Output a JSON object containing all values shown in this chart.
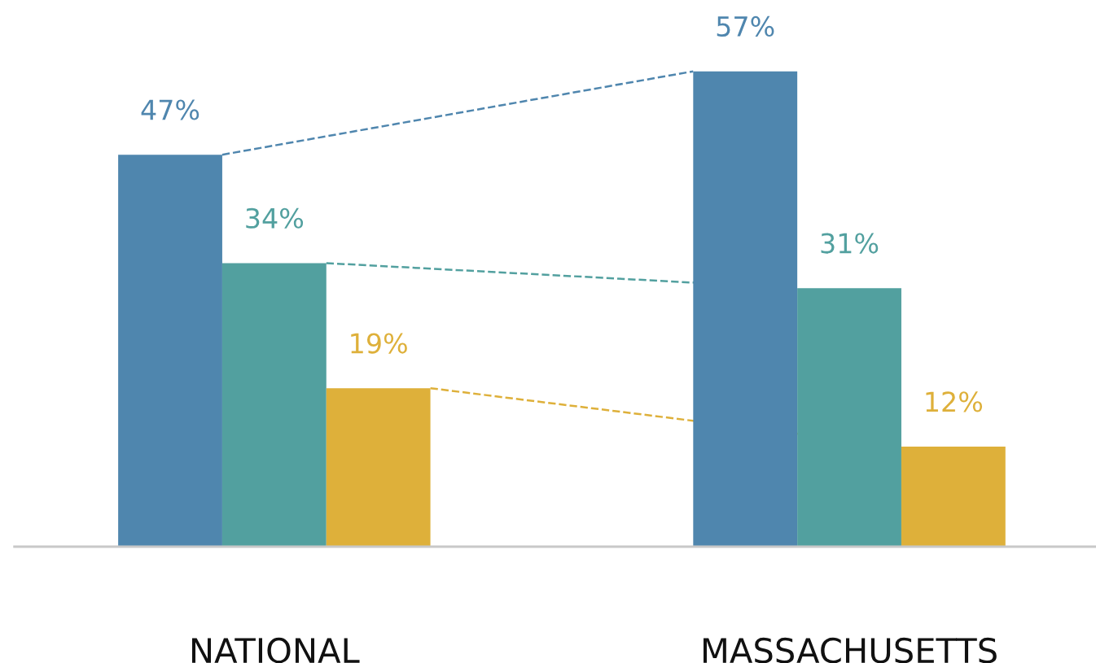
{
  "chart_data": {
    "type": "bar",
    "categories": [
      "NATIONAL",
      "MASSACHUSETTS"
    ],
    "series": [
      {
        "color": "#4f86ae",
        "values": [
          47,
          57
        ],
        "value_labels": [
          "47%",
          "57%"
        ]
      },
      {
        "color": "#52a09f",
        "values": [
          34,
          31
        ],
        "value_labels": [
          "34%",
          "31%"
        ]
      },
      {
        "color": "#deb03a",
        "values": [
          19,
          12
        ],
        "value_labels": [
          "19%",
          "12%"
        ]
      }
    ],
    "line_style": "dashed",
    "grid": false,
    "legend": false
  }
}
